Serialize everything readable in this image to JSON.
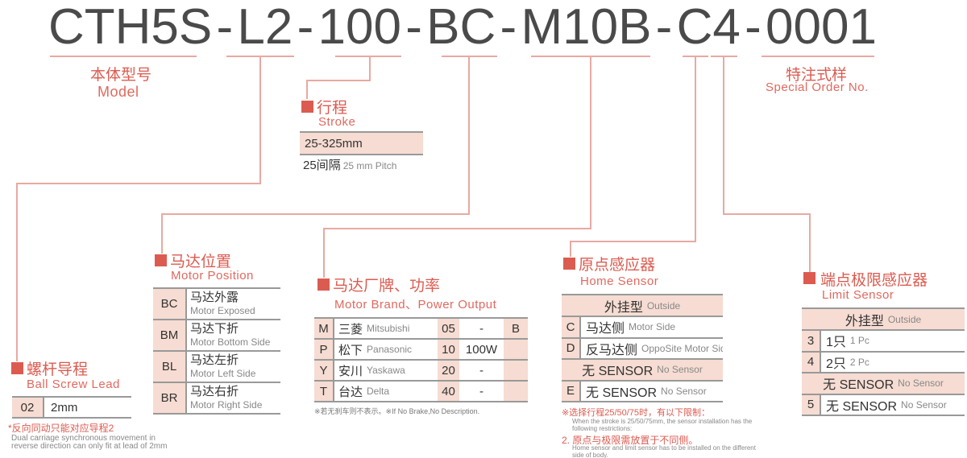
{
  "colors": {
    "accent": "#dc5b50",
    "cell_bg": "#f6dcd2",
    "line": "#e8a9a2"
  },
  "code": {
    "segments": [
      "CTH5S",
      "L2",
      "100",
      "BC",
      "M10B",
      "C4",
      "0001"
    ],
    "sep": "-"
  },
  "model": {
    "zh": "本体型号",
    "en": "Model"
  },
  "special": {
    "zh": "特注式样",
    "en": "Special Order No."
  },
  "stroke": {
    "zh": "行程",
    "en": "Stroke",
    "range": "25-325mm",
    "pitch_zh": "25间隔",
    "pitch_en": "25 mm Pitch"
  },
  "lead": {
    "zh": "螺杆导程",
    "en": "Ball Screw Lead",
    "rows": [
      {
        "code": "02",
        "value": "2mm"
      }
    ],
    "note_zh": "*反向同动只能对应导程2",
    "note_en": "Dual carriage synchronous movement in reverse direction can only fit at lead of 2mm"
  },
  "motor_position": {
    "zh": "马达位置",
    "en": "Motor Position",
    "rows": [
      {
        "code": "BC",
        "zh": "马达外露",
        "en": "Motor Exposed"
      },
      {
        "code": "BM",
        "zh": "马达下折",
        "en": "Motor Bottom Side"
      },
      {
        "code": "BL",
        "zh": "马达左折",
        "en": "Motor Left Side"
      },
      {
        "code": "BR",
        "zh": "马达右折",
        "en": "Motor Right Side"
      }
    ]
  },
  "motor_brand": {
    "zh": "马达厂牌、功率",
    "en": "Motor Brand、Power Output",
    "rows": [
      {
        "code": "M",
        "zh": "三菱",
        "en": "Mitsubishi",
        "num": "05",
        "power": "-",
        "brake": "B"
      },
      {
        "code": "P",
        "zh": "松下",
        "en": "Panasonic",
        "num": "10",
        "power": "100W",
        "brake": ""
      },
      {
        "code": "Y",
        "zh": "安川",
        "en": "Yaskawa",
        "num": "20",
        "power": "-",
        "brake": ""
      },
      {
        "code": "T",
        "zh": "台达",
        "en": "Delta",
        "num": "40",
        "power": "-",
        "brake": ""
      }
    ],
    "note": "※若无刹车则不表示。※If No Brake,No Description."
  },
  "home_sensor": {
    "zh": "原点感应器",
    "en": "Home Sensor",
    "rows": [
      {
        "header": true,
        "zh": "外挂型",
        "en": "Outside"
      },
      {
        "code": "C",
        "zh": "马达侧",
        "en": "Motor Side"
      },
      {
        "code": "D",
        "zh": "反马达侧",
        "en": "OppoSite Motor Side"
      },
      {
        "header": true,
        "zh": "无 SENSOR",
        "en": "No Sensor"
      },
      {
        "code": "E",
        "zh": "无 SENSOR",
        "en": "No Sensor"
      }
    ],
    "note1_zh": "※选择行程25/50/75时，有以下限制：",
    "note1_en": "When the stroke is 25/50/75mm, the sensor installation has the following restrictions:",
    "note2_zh": "2. 原点与极限需放置于不同侧。",
    "note2_en": "Home sensor and limit sensor has to be installed on the different side of body."
  },
  "limit_sensor": {
    "zh": "端点极限感应器",
    "en": "Limit Sensor",
    "rows": [
      {
        "header": true,
        "zh": "外挂型",
        "en": "Outside"
      },
      {
        "code": "3",
        "zh": "1只",
        "en": "1 Pc"
      },
      {
        "code": "4",
        "zh": "2只",
        "en": "2 Pc"
      },
      {
        "header": true,
        "zh": "无 SENSOR",
        "en": "No Sensor"
      },
      {
        "code": "5",
        "zh": "无 SENSOR",
        "en": "No Sensor"
      }
    ]
  }
}
